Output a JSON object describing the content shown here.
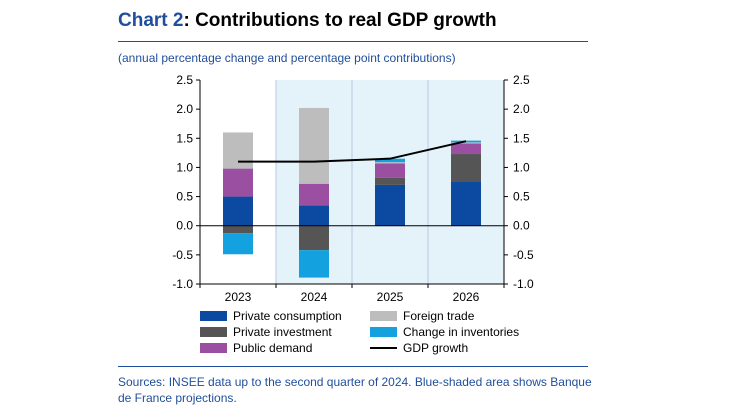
{
  "header": {
    "title_prefix": "Chart 2",
    "title_text": ": Contributions to real GDP growth",
    "subtitle": "(annual percentage change and percentage point contributions)"
  },
  "sources": {
    "text": "Sources: INSEE data up to the second quarter of 2024. Blue-shaded area shows Banque de France projections."
  },
  "colors": {
    "private_consumption": "#0b4aa0",
    "private_investment": "#555555",
    "public_demand": "#9a4fa1",
    "foreign_trade": "#bdbdbd",
    "change_in_inventories": "#14a1e0",
    "gdp_growth": "#000000",
    "projection_shade": "#e4f2fa",
    "accent": "#1f4e9c"
  },
  "chart_data": {
    "type": "bar",
    "stacked": true,
    "categories": [
      "2023",
      "2024",
      "2025",
      "2026"
    ],
    "projection_categories": [
      "2024",
      "2025",
      "2026"
    ],
    "ylim": [
      -1.0,
      2.5
    ],
    "yticks": [
      "2.5",
      "2.0",
      "1.5",
      "1.0",
      "0.5",
      "0.0",
      "-0.5",
      "-1.0"
    ],
    "series": [
      {
        "name": "Private consumption",
        "key": "private_consumption",
        "values": [
          0.5,
          0.35,
          0.7,
          0.75
        ]
      },
      {
        "name": "Private investment",
        "key": "private_investment",
        "values": [
          -0.13,
          -0.42,
          0.12,
          0.48
        ]
      },
      {
        "name": "Public demand",
        "key": "public_demand",
        "values": [
          0.48,
          0.37,
          0.25,
          0.18
        ]
      },
      {
        "name": "Foreign trade",
        "key": "foreign_trade",
        "values": [
          0.62,
          1.3,
          0.02,
          0.02
        ]
      },
      {
        "name": "Change in inventories",
        "key": "change_in_inventories",
        "values": [
          -0.36,
          -0.47,
          0.06,
          0.03
        ]
      }
    ],
    "line": {
      "name": "GDP growth",
      "key": "gdp_growth",
      "values": [
        1.1,
        1.1,
        1.15,
        1.45
      ]
    },
    "legend": {
      "left": [
        "Private consumption",
        "Private investment",
        "Public demand"
      ],
      "right": [
        "Foreign trade",
        "Change in inventories",
        "GDP growth"
      ]
    }
  }
}
